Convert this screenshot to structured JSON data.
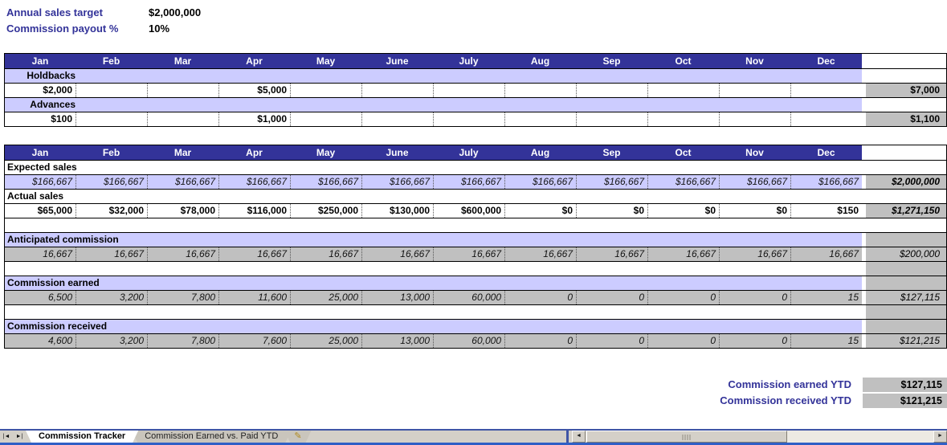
{
  "app": {
    "summary": {
      "target_label": "Annual sales target",
      "target_value": "$2,000,000",
      "payout_label": "Commission payout %",
      "payout_value": "10%"
    },
    "months": [
      "Jan",
      "Feb",
      "Mar",
      "Apr",
      "May",
      "June",
      "July",
      "Aug",
      "Sep",
      "Oct",
      "Nov",
      "Dec"
    ],
    "holdbacks_advances": {
      "holdbacks": {
        "label": "Holdbacks",
        "values": [
          "$2,000",
          "",
          "",
          "$5,000",
          "",
          "",
          "",
          "",
          "",
          "",
          "",
          ""
        ],
        "total": "$7,000"
      },
      "advances": {
        "label": "Advances",
        "values": [
          "$100",
          "",
          "",
          "$1,000",
          "",
          "",
          "",
          "",
          "",
          "",
          "",
          ""
        ],
        "total": "$1,100"
      }
    },
    "tracker": {
      "expected": {
        "label": "Expected sales",
        "values": [
          "$166,667",
          "$166,667",
          "$166,667",
          "$166,667",
          "$166,667",
          "$166,667",
          "$166,667",
          "$166,667",
          "$166,667",
          "$166,667",
          "$166,667",
          "$166,667"
        ],
        "total": "$2,000,000"
      },
      "actual": {
        "label": "Actual sales",
        "values": [
          "$65,000",
          "$32,000",
          "$78,000",
          "$116,000",
          "$250,000",
          "$130,000",
          "$600,000",
          "$0",
          "$0",
          "$0",
          "$0",
          "$150"
        ],
        "total": "$1,271,150"
      },
      "anticipated": {
        "label": "Anticipated commission",
        "values": [
          "16,667",
          "16,667",
          "16,667",
          "16,667",
          "16,667",
          "16,667",
          "16,667",
          "16,667",
          "16,667",
          "16,667",
          "16,667",
          "16,667"
        ],
        "total": "$200,000"
      },
      "earned": {
        "label": "Commission earned",
        "values": [
          "6,500",
          "3,200",
          "7,800",
          "11,600",
          "25,000",
          "13,000",
          "60,000",
          "0",
          "0",
          "0",
          "0",
          "15"
        ],
        "total": "$127,115"
      },
      "received": {
        "label": "Commission received",
        "values": [
          "4,600",
          "3,200",
          "7,800",
          "7,600",
          "25,000",
          "13,000",
          "60,000",
          "0",
          "0",
          "0",
          "0",
          "15"
        ],
        "total": "$121,215"
      }
    },
    "ytd": {
      "earned_label": "Commission earned YTD",
      "earned_value": "$127,115",
      "received_label": "Commission received YTD",
      "received_value": "$121,215"
    },
    "sheet_tabs": {
      "nav_first": "|◄",
      "nav_last": "►|",
      "active": "Commission Tracker",
      "inactive": "Commission Earned vs. Paid YTD",
      "scroll_left": "◄",
      "scroll_right": "►"
    },
    "colors": {
      "header_navy": "#333399",
      "lavender": "#CCCCFF",
      "cell_gray": "#C0C0C0",
      "label_navy": "#333399",
      "tabbar_gray": "#D4D0C8",
      "bottom_blue": "#2F5FC6"
    }
  }
}
